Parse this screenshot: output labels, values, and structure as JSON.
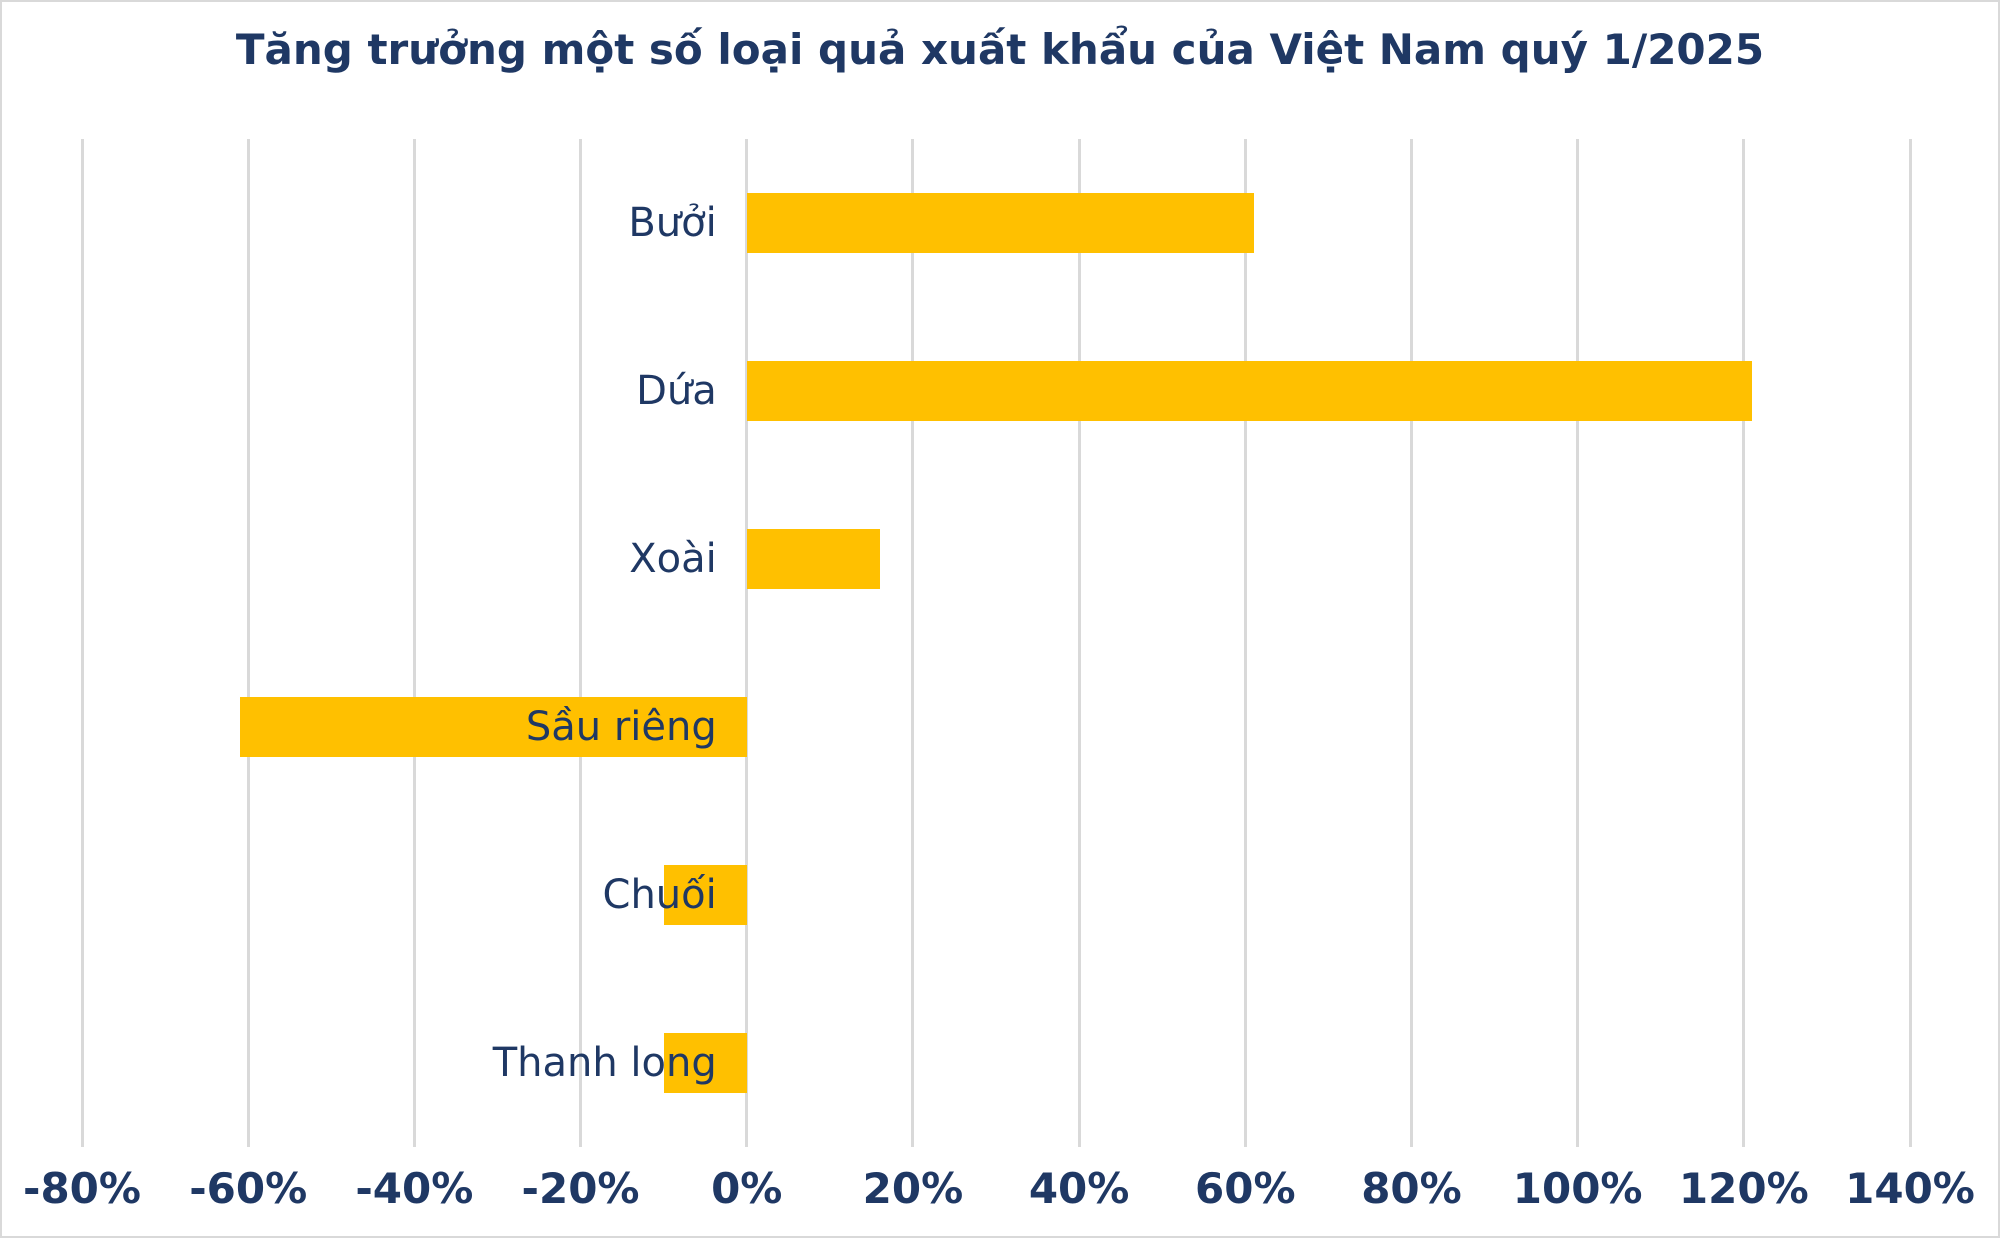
{
  "page": {
    "background": "#ffffff",
    "frame_border_color": "#d9d9d9"
  },
  "chart_data": {
    "type": "bar",
    "orientation": "horizontal",
    "title": "Tăng trưởng một số loại quả xuất khẩu của Việt Nam quý 1/2025",
    "categories": [
      "Bưởi",
      "Dứa",
      "Xoài",
      "Sầu riêng",
      "Chuối",
      "Thanh long"
    ],
    "values": [
      61,
      121,
      16,
      -61,
      -10,
      -10
    ],
    "unit": "%",
    "xlim": [
      -80,
      140
    ],
    "x_ticks": [
      -80,
      -60,
      -40,
      -20,
      0,
      20,
      40,
      60,
      80,
      100,
      120,
      140
    ],
    "x_tick_labels": [
      "-80%",
      "-60%",
      "-40%",
      "-20%",
      "0%",
      "20%",
      "40%",
      "60%",
      "80%",
      "100%",
      "120%",
      "140%"
    ],
    "xlabel": "",
    "ylabel": "",
    "legend": "none",
    "grid": "vertical-only",
    "colors": {
      "bar": "#ffc000",
      "text": "#1f3864",
      "gridline": "#d9d9d9"
    }
  }
}
